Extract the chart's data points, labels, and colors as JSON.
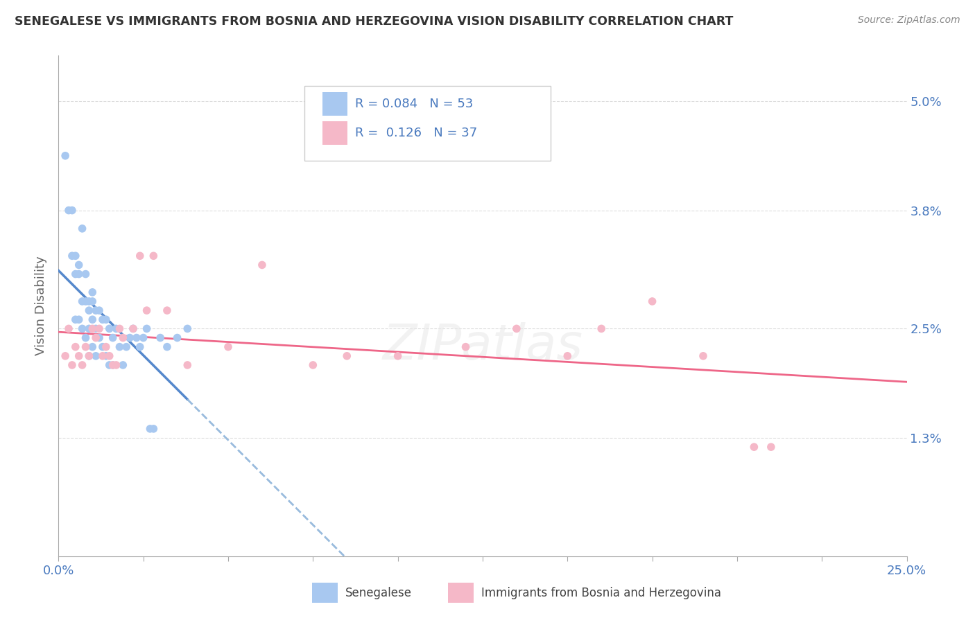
{
  "title": "SENEGALESE VS IMMIGRANTS FROM BOSNIA AND HERZEGOVINA VISION DISABILITY CORRELATION CHART",
  "source": "Source: ZipAtlas.com",
  "ylabel": "Vision Disability",
  "xlim": [
    0.0,
    0.25
  ],
  "ylim": [
    0.0,
    0.055
  ],
  "xticks": [
    0.0,
    0.025,
    0.05,
    0.075,
    0.1,
    0.125,
    0.15,
    0.175,
    0.2,
    0.225,
    0.25
  ],
  "xticklabels": [
    "0.0%",
    "",
    "",
    "",
    "",
    "",
    "",
    "",
    "",
    "",
    "25.0%"
  ],
  "yticks": [
    0.013,
    0.025,
    0.038,
    0.05
  ],
  "yticklabels": [
    "1.3%",
    "2.5%",
    "3.8%",
    "5.0%"
  ],
  "senegalese_color": "#a8c8f0",
  "bosnia_color": "#f5b8c8",
  "trend_blue_color": "#5588cc",
  "trend_blue_dash_color": "#99bbdd",
  "trend_pink_color": "#ee6688",
  "legend_R_blue": "0.084",
  "legend_N_blue": "53",
  "legend_R_pink": "0.126",
  "legend_N_pink": "37",
  "background_color": "#ffffff",
  "grid_color": "#dddddd",
  "senegalese_x": [
    0.002,
    0.003,
    0.004,
    0.004,
    0.005,
    0.005,
    0.005,
    0.006,
    0.006,
    0.006,
    0.007,
    0.007,
    0.007,
    0.008,
    0.008,
    0.008,
    0.009,
    0.009,
    0.009,
    0.009,
    0.01,
    0.01,
    0.01,
    0.01,
    0.011,
    0.011,
    0.011,
    0.012,
    0.012,
    0.013,
    0.013,
    0.014,
    0.014,
    0.015,
    0.015,
    0.016,
    0.016,
    0.017,
    0.018,
    0.019,
    0.02,
    0.021,
    0.022,
    0.023,
    0.024,
    0.025,
    0.026,
    0.027,
    0.028,
    0.03,
    0.032,
    0.035,
    0.038
  ],
  "senegalese_y": [
    0.044,
    0.038,
    0.038,
    0.033,
    0.033,
    0.031,
    0.026,
    0.032,
    0.031,
    0.026,
    0.036,
    0.028,
    0.025,
    0.031,
    0.028,
    0.024,
    0.028,
    0.027,
    0.025,
    0.022,
    0.029,
    0.028,
    0.026,
    0.023,
    0.027,
    0.025,
    0.022,
    0.027,
    0.024,
    0.026,
    0.023,
    0.026,
    0.022,
    0.025,
    0.021,
    0.024,
    0.021,
    0.025,
    0.023,
    0.021,
    0.023,
    0.024,
    0.025,
    0.024,
    0.023,
    0.024,
    0.025,
    0.014,
    0.014,
    0.024,
    0.023,
    0.024,
    0.025
  ],
  "bosnia_x": [
    0.002,
    0.003,
    0.004,
    0.005,
    0.006,
    0.007,
    0.008,
    0.009,
    0.01,
    0.011,
    0.012,
    0.013,
    0.014,
    0.015,
    0.016,
    0.017,
    0.018,
    0.019,
    0.022,
    0.024,
    0.026,
    0.028,
    0.032,
    0.038,
    0.05,
    0.06,
    0.075,
    0.085,
    0.1,
    0.12,
    0.135,
    0.15,
    0.16,
    0.175,
    0.19,
    0.205,
    0.21
  ],
  "bosnia_y": [
    0.022,
    0.025,
    0.021,
    0.023,
    0.022,
    0.021,
    0.023,
    0.022,
    0.025,
    0.024,
    0.025,
    0.022,
    0.023,
    0.022,
    0.021,
    0.021,
    0.025,
    0.024,
    0.025,
    0.033,
    0.027,
    0.033,
    0.027,
    0.021,
    0.023,
    0.032,
    0.021,
    0.022,
    0.022,
    0.023,
    0.025,
    0.022,
    0.025,
    0.028,
    0.022,
    0.012,
    0.012
  ]
}
